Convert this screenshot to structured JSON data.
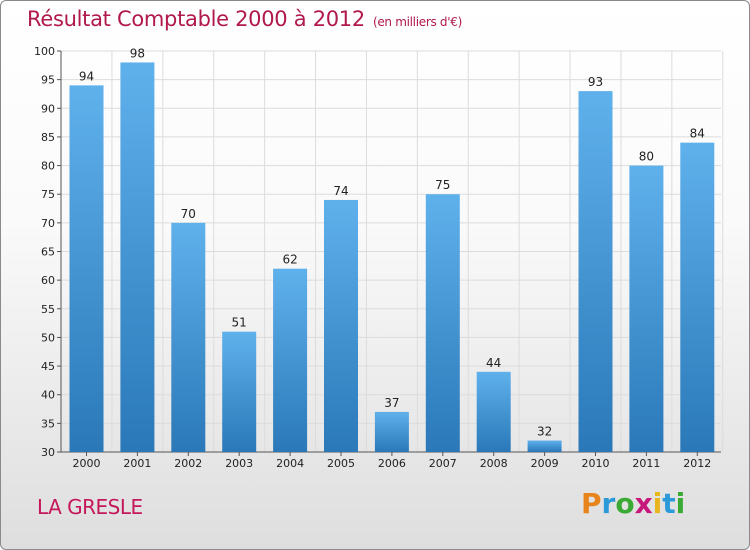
{
  "header": {
    "title": "Résultat Comptable 2000 à 2012",
    "unit": "(en milliers d'€)"
  },
  "footer": {
    "commune": "LA GRESLE",
    "logo_letters": [
      "P",
      "r",
      "o",
      "x",
      "i",
      "t",
      "i"
    ],
    "logo_colors": [
      "#e8841c",
      "#2c9ad8",
      "#3aaa35",
      "#c8177c",
      "#e8b51c",
      "#2c9ad8",
      "#3aaa35"
    ]
  },
  "colors": {
    "bar_top": "#5fb1ec",
    "bar_bottom": "#2a78b8",
    "grid": "#dcdcdc",
    "title": "#b0184e"
  },
  "chart_data": {
    "type": "bar",
    "title": "Résultat Comptable 2000 à 2012",
    "subtitle": "(en milliers d'€)",
    "categories": [
      "2000",
      "2001",
      "2002",
      "2003",
      "2004",
      "2005",
      "2006",
      "2007",
      "2008",
      "2009",
      "2010",
      "2011",
      "2012"
    ],
    "values": [
      94,
      98,
      70,
      51,
      62,
      74,
      37,
      75,
      44,
      32,
      93,
      80,
      84
    ],
    "ylim": [
      30,
      100
    ],
    "yticks": [
      30,
      35,
      40,
      45,
      50,
      55,
      60,
      65,
      70,
      75,
      80,
      85,
      90,
      95,
      100
    ],
    "grid": true,
    "data_labels": true
  }
}
